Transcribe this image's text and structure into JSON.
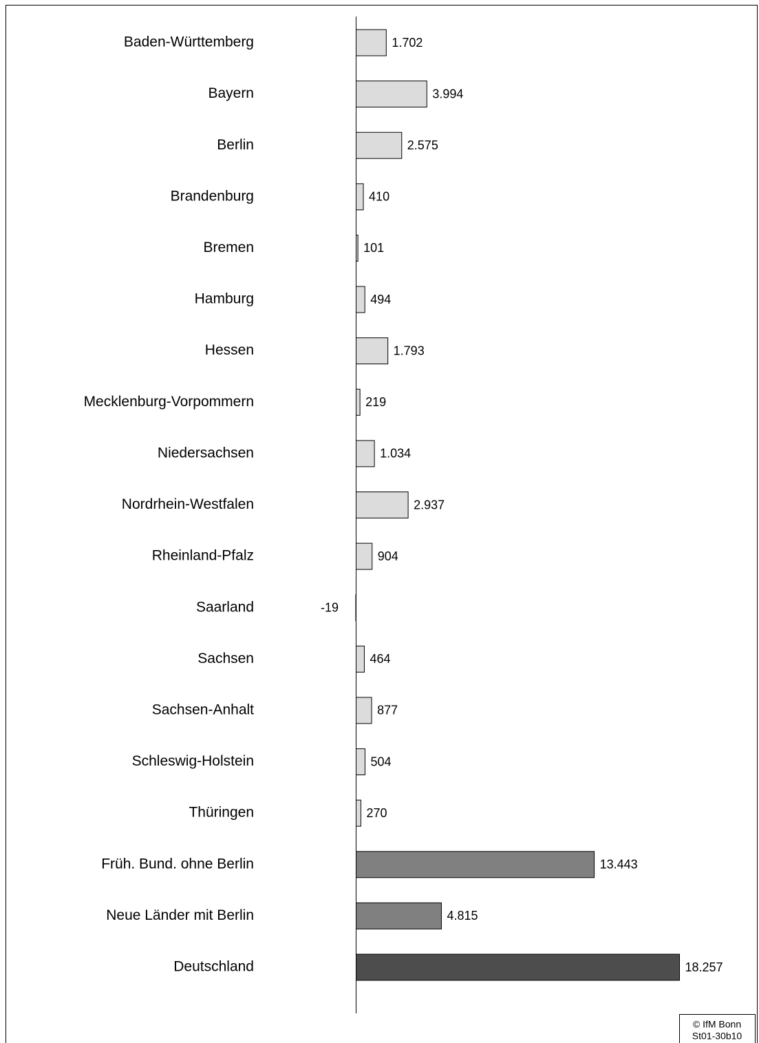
{
  "chart_data": {
    "type": "bar",
    "orientation": "horizontal",
    "categories": [
      "Baden-Württemberg",
      "Bayern",
      "Berlin",
      "Brandenburg",
      "Bremen",
      "Hamburg",
      "Hessen",
      "Mecklenburg-Vorpommern",
      "Niedersachsen",
      "Nordrhein-Westfalen",
      "Rheinland-Pfalz",
      "Saarland",
      "Sachsen",
      "Sachsen-Anhalt",
      "Schleswig-Holstein",
      "Thüringen",
      "Früh. Bund. ohne Berlin",
      "Neue Länder mit Berlin",
      "Deutschland"
    ],
    "values": [
      1702,
      3994,
      2575,
      410,
      101,
      494,
      1793,
      219,
      1034,
      2937,
      904,
      -19,
      464,
      877,
      504,
      270,
      13443,
      4815,
      18257
    ],
    "value_labels": [
      "1.702",
      "3.994",
      "2.575",
      "410",
      "101",
      "494",
      "1.793",
      "219",
      "1.034",
      "2.937",
      "904",
      "-19",
      "464",
      "877",
      "504",
      "270",
      "13.443",
      "4.815",
      "18.257"
    ],
    "colors": [
      "#dcdcdc",
      "#dcdcdc",
      "#dcdcdc",
      "#dcdcdc",
      "#dcdcdc",
      "#dcdcdc",
      "#dcdcdc",
      "#dcdcdc",
      "#dcdcdc",
      "#dcdcdc",
      "#dcdcdc",
      "#dcdcdc",
      "#dcdcdc",
      "#dcdcdc",
      "#dcdcdc",
      "#dcdcdc",
      "#808080",
      "#808080",
      "#4d4d4d"
    ],
    "source": [
      "© IfM Bonn",
      "St01-30b10"
    ]
  }
}
